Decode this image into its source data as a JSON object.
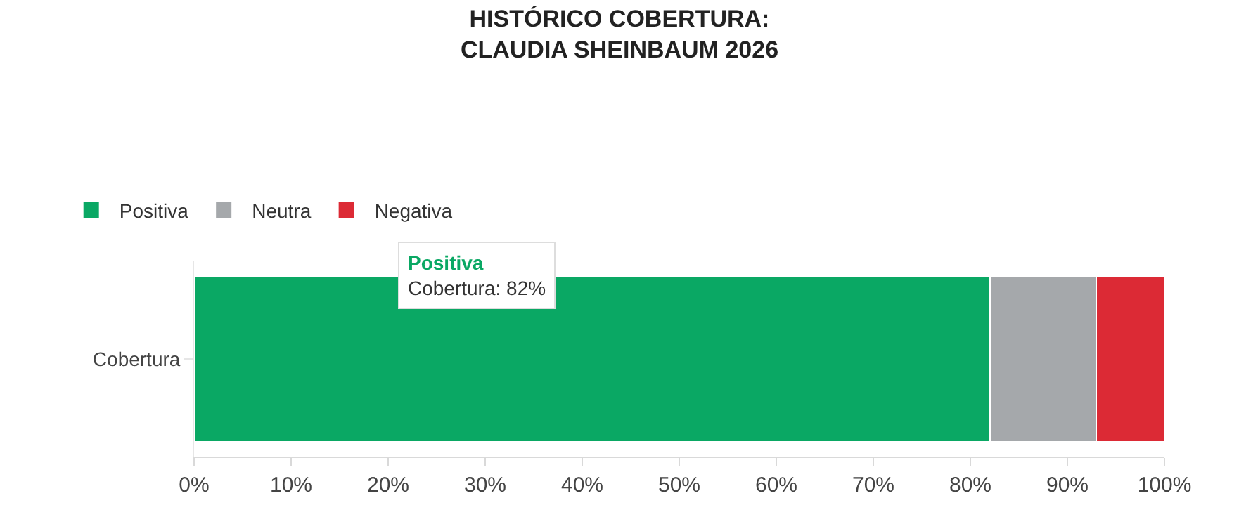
{
  "chart_data": {
    "type": "bar",
    "orientation": "horizontal",
    "stacked": true,
    "title": "HISTÓRICO COBERTURA:\nCLAUDIA SHEINBAUM 2026",
    "categories": [
      "Cobertura"
    ],
    "series": [
      {
        "name": "Positiva",
        "color": "#0aa864",
        "values": [
          82
        ]
      },
      {
        "name": "Neutra",
        "color": "#a5a8ab",
        "values": [
          11
        ]
      },
      {
        "name": "Negativa",
        "color": "#dc2a35",
        "values": [
          7
        ]
      }
    ],
    "xlim": [
      0,
      100
    ],
    "xticks": [
      {
        "value": 0,
        "label": "0%"
      },
      {
        "value": 10,
        "label": "10%"
      },
      {
        "value": 20,
        "label": "20%"
      },
      {
        "value": 30,
        "label": "30%"
      },
      {
        "value": 40,
        "label": "40%"
      },
      {
        "value": 50,
        "label": "50%"
      },
      {
        "value": 60,
        "label": "60%"
      },
      {
        "value": 70,
        "label": "70%"
      },
      {
        "value": 80,
        "label": "80%"
      },
      {
        "value": 90,
        "label": "90%"
      },
      {
        "value": 100,
        "label": "100%"
      }
    ],
    "annotations": [
      "Positiva\nCobertura: 82%"
    ],
    "legend": "top left"
  }
}
